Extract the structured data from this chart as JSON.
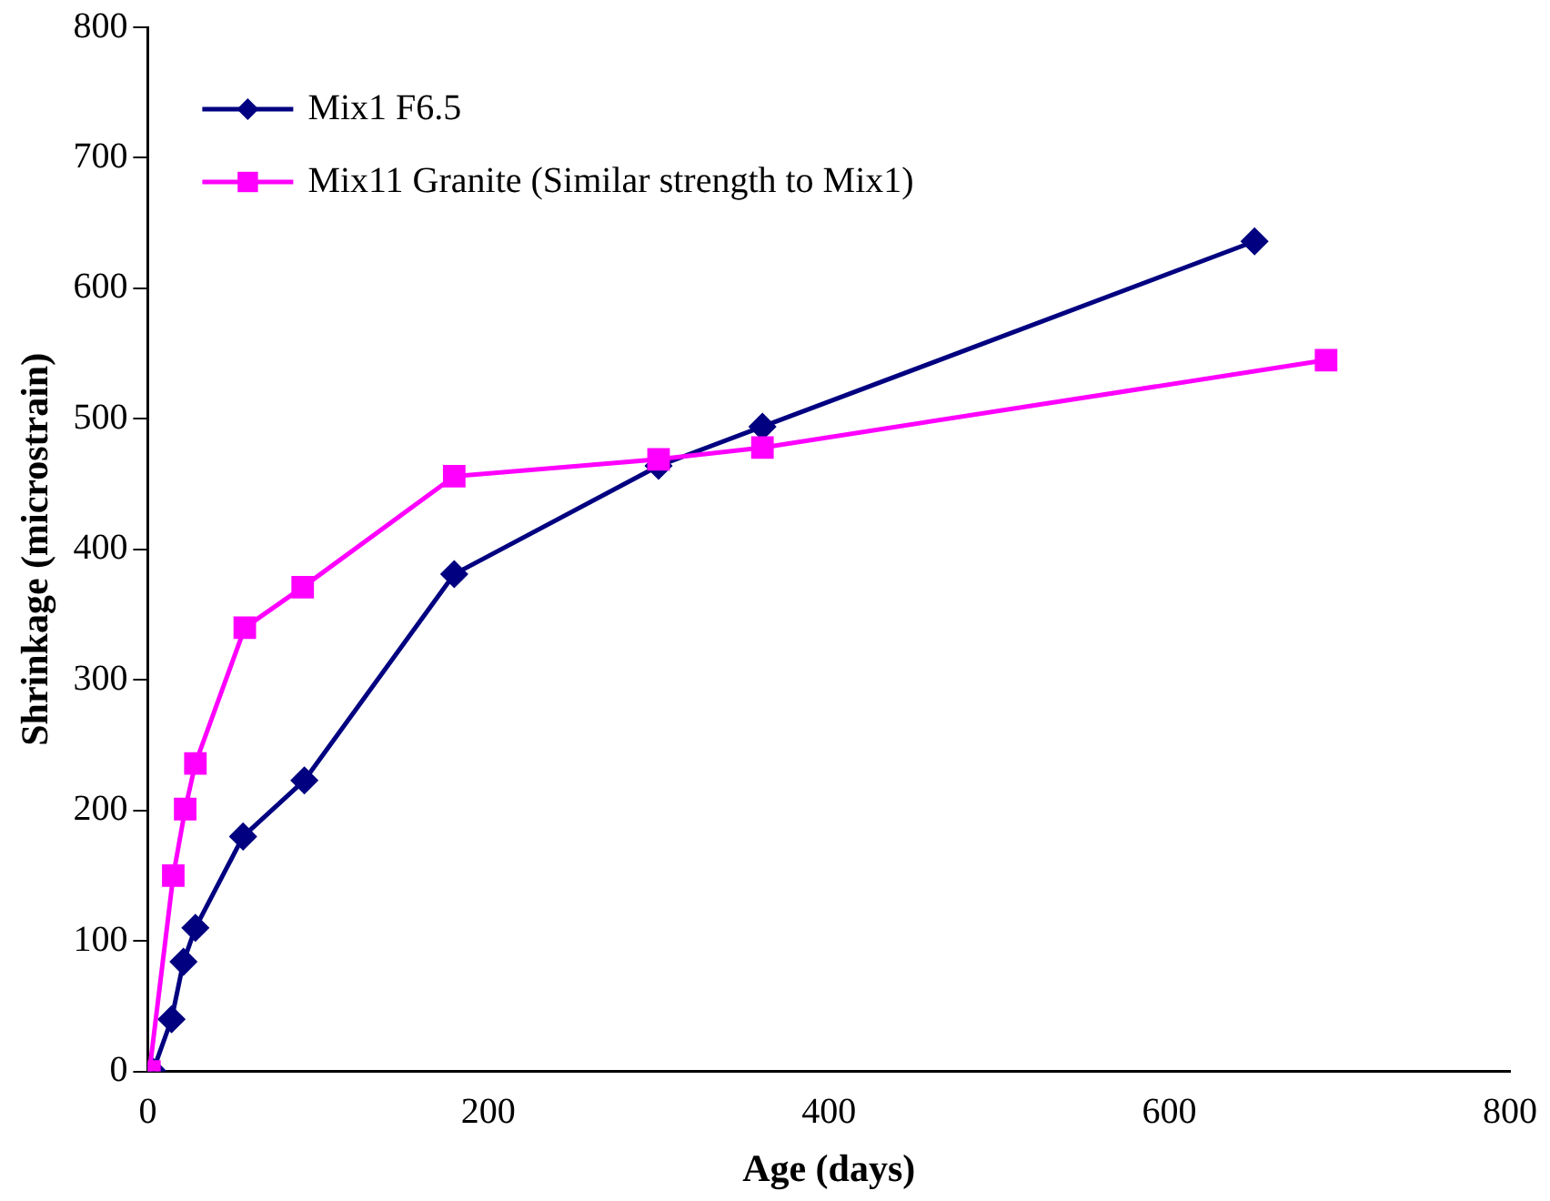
{
  "chart_data": {
    "type": "line",
    "xlabel": "Age (days)",
    "ylabel": "Shrinkage (microstrain)",
    "xlim": [
      0,
      800
    ],
    "xticks": [
      0,
      200,
      400,
      600,
      800
    ],
    "ylim": [
      0,
      800
    ],
    "yticks": [
      0,
      100,
      200,
      300,
      400,
      500,
      600,
      700,
      800
    ],
    "grid": false,
    "legend": "top left",
    "line_style": "solid",
    "series": [
      {
        "name": "Mix1 F6.5",
        "color": "#000080",
        "marker": "diamond",
        "x": [
          3,
          14,
          21,
          28,
          56,
          92,
          180,
          300,
          361,
          650
        ],
        "values": [
          0,
          40,
          84,
          110,
          180,
          223,
          381,
          464,
          494,
          636
        ]
      },
      {
        "name": "Mix11 Granite (Similar strength to Mix1)",
        "color": "#ff00ff",
        "marker": "square",
        "x": [
          1,
          15,
          22,
          28,
          57,
          91,
          180,
          300,
          361,
          692
        ],
        "values": [
          0,
          150,
          201,
          236,
          340,
          371,
          456,
          469,
          478,
          545
        ]
      }
    ]
  }
}
